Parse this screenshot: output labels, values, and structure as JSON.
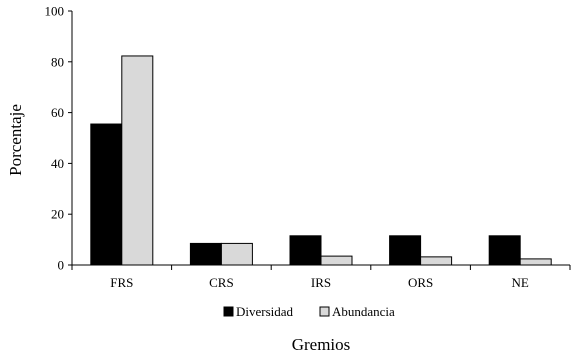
{
  "chart_data": {
    "type": "bar",
    "categories": [
      "FRS",
      "CRS",
      "IRS",
      "ORS",
      "NE"
    ],
    "series": [
      {
        "name": "Diversidad",
        "values": [
          55.5,
          8.5,
          11.5,
          11.5,
          11.5
        ],
        "color": "#000000"
      },
      {
        "name": "Abundancia",
        "values": [
          82.3,
          8.5,
          3.5,
          3.2,
          2.4
        ],
        "color": "#d9d9d9"
      }
    ],
    "xlabel": "Gremios",
    "ylabel": "Porcentaje",
    "ylim": [
      0,
      100
    ],
    "yticks": [
      0,
      20,
      40,
      60,
      80,
      100
    ],
    "grid": false,
    "legend_position": "bottom"
  }
}
